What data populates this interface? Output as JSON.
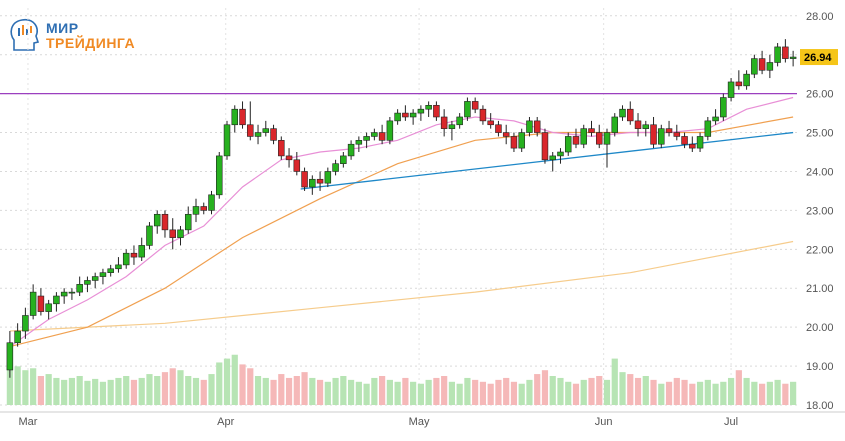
{
  "logo": {
    "line1": "МИР",
    "line2": "ТРЕЙДИНГА"
  },
  "chart_data": {
    "type": "candlestick",
    "y_ticks": [
      "28.00",
      "27.00",
      "26.00",
      "25.00",
      "24.00",
      "23.00",
      "22.00",
      "21.00",
      "20.00",
      "19.00",
      "18.00"
    ],
    "ylim": [
      18,
      28.2
    ],
    "x_ticks": [
      {
        "label": "Mar",
        "t": 1.0
      },
      {
        "label": "Apr",
        "t": 10.0
      },
      {
        "label": "May",
        "t": 18.8
      },
      {
        "label": "Jun",
        "t": 27.2
      },
      {
        "label": "Jul",
        "t": 33.0
      }
    ],
    "last_price": "26.94",
    "colors": {
      "up": "#27b11f",
      "down": "#d9262b",
      "vol_up": "#b7e4b4",
      "vol_down": "#f5b8b8",
      "resistance": "#9b3fbf",
      "support": "#1e88c8",
      "ma_short": "#e88fd6",
      "ma_mid": "#f0a050",
      "ma_long": "#f6cc8c",
      "last_tag": "#f5c518"
    },
    "candles": [
      [
        18.9,
        19.9,
        18.7,
        19.6
      ],
      [
        19.6,
        20.1,
        19.5,
        19.9
      ],
      [
        19.9,
        20.5,
        19.7,
        20.3
      ],
      [
        20.3,
        21.1,
        20.2,
        20.9
      ],
      [
        20.8,
        21.0,
        20.3,
        20.4
      ],
      [
        20.4,
        20.7,
        20.2,
        20.6
      ],
      [
        20.6,
        20.9,
        20.4,
        20.8
      ],
      [
        20.8,
        21.0,
        20.6,
        20.9
      ],
      [
        20.9,
        21.0,
        20.7,
        20.9
      ],
      [
        20.9,
        21.3,
        20.8,
        21.1
      ],
      [
        21.1,
        21.3,
        20.9,
        21.2
      ],
      [
        21.2,
        21.4,
        21.0,
        21.3
      ],
      [
        21.3,
        21.5,
        21.1,
        21.4
      ],
      [
        21.4,
        21.6,
        21.3,
        21.5
      ],
      [
        21.5,
        21.8,
        21.4,
        21.6
      ],
      [
        21.6,
        22.0,
        21.5,
        21.9
      ],
      [
        21.9,
        22.1,
        21.6,
        21.8
      ],
      [
        21.8,
        22.3,
        21.7,
        22.1
      ],
      [
        22.1,
        22.7,
        22.0,
        22.6
      ],
      [
        22.6,
        23.0,
        22.4,
        22.9
      ],
      [
        22.9,
        23.0,
        22.3,
        22.5
      ],
      [
        22.5,
        22.8,
        22.0,
        22.3
      ],
      [
        22.3,
        22.6,
        22.1,
        22.5
      ],
      [
        22.5,
        23.1,
        22.4,
        22.9
      ],
      [
        22.9,
        23.3,
        22.7,
        23.1
      ],
      [
        23.1,
        23.2,
        22.9,
        23.0
      ],
      [
        23.0,
        23.5,
        22.9,
        23.4
      ],
      [
        23.4,
        24.5,
        23.3,
        24.4
      ],
      [
        24.4,
        25.3,
        24.3,
        25.2
      ],
      [
        25.2,
        25.7,
        25.0,
        25.6
      ],
      [
        25.6,
        25.8,
        25.1,
        25.2
      ],
      [
        25.2,
        25.8,
        24.8,
        24.9
      ],
      [
        24.9,
        25.2,
        24.7,
        25.0
      ],
      [
        25.0,
        25.3,
        24.9,
        25.1
      ],
      [
        25.1,
        25.2,
        24.7,
        24.8
      ],
      [
        24.8,
        24.9,
        24.3,
        24.4
      ],
      [
        24.4,
        24.6,
        24.1,
        24.3
      ],
      [
        24.3,
        24.5,
        23.9,
        24.0
      ],
      [
        24.0,
        24.1,
        23.5,
        23.6
      ],
      [
        23.6,
        23.9,
        23.4,
        23.8
      ],
      [
        23.8,
        24.0,
        23.5,
        23.7
      ],
      [
        23.7,
        24.1,
        23.6,
        24.0
      ],
      [
        24.0,
        24.3,
        23.9,
        24.2
      ],
      [
        24.2,
        24.5,
        24.1,
        24.4
      ],
      [
        24.4,
        24.8,
        24.3,
        24.7
      ],
      [
        24.7,
        24.9,
        24.5,
        24.8
      ],
      [
        24.8,
        25.0,
        24.6,
        24.9
      ],
      [
        24.9,
        25.1,
        24.8,
        25.0
      ],
      [
        25.0,
        25.2,
        24.7,
        24.8
      ],
      [
        24.8,
        25.4,
        24.7,
        25.3
      ],
      [
        25.3,
        25.6,
        25.2,
        25.5
      ],
      [
        25.5,
        25.7,
        25.3,
        25.4
      ],
      [
        25.4,
        25.6,
        25.2,
        25.5
      ],
      [
        25.5,
        25.7,
        25.3,
        25.6
      ],
      [
        25.6,
        25.8,
        25.4,
        25.7
      ],
      [
        25.7,
        25.8,
        25.3,
        25.4
      ],
      [
        25.4,
        25.6,
        24.9,
        25.1
      ],
      [
        25.1,
        25.3,
        24.8,
        25.2
      ],
      [
        25.2,
        25.5,
        25.1,
        25.4
      ],
      [
        25.4,
        25.9,
        25.3,
        25.8
      ],
      [
        25.8,
        25.9,
        25.5,
        25.6
      ],
      [
        25.6,
        25.7,
        25.2,
        25.3
      ],
      [
        25.3,
        25.5,
        25.1,
        25.2
      ],
      [
        25.2,
        25.3,
        24.9,
        25.0
      ],
      [
        25.0,
        25.2,
        24.7,
        24.9
      ],
      [
        24.9,
        25.0,
        24.5,
        24.6
      ],
      [
        24.6,
        25.1,
        24.5,
        25.0
      ],
      [
        25.0,
        25.4,
        24.9,
        25.3
      ],
      [
        25.3,
        25.4,
        24.9,
        25.0
      ],
      [
        25.0,
        25.1,
        24.2,
        24.3
      ],
      [
        24.3,
        24.5,
        24.0,
        24.4
      ],
      [
        24.4,
        24.6,
        24.2,
        24.5
      ],
      [
        24.5,
        25.0,
        24.4,
        24.9
      ],
      [
        24.9,
        25.1,
        24.6,
        24.7
      ],
      [
        24.7,
        25.2,
        24.6,
        25.1
      ],
      [
        25.1,
        25.3,
        24.9,
        25.0
      ],
      [
        25.0,
        25.2,
        24.6,
        24.7
      ],
      [
        24.7,
        25.1,
        24.1,
        25.0
      ],
      [
        25.0,
        25.5,
        24.9,
        25.4
      ],
      [
        25.4,
        25.7,
        25.3,
        25.6
      ],
      [
        25.6,
        25.8,
        25.2,
        25.3
      ],
      [
        25.3,
        25.5,
        24.9,
        25.1
      ],
      [
        25.1,
        25.3,
        24.9,
        25.2
      ],
      [
        25.2,
        25.4,
        24.6,
        24.7
      ],
      [
        24.7,
        25.2,
        24.6,
        25.1
      ],
      [
        25.1,
        25.3,
        24.9,
        25.0
      ],
      [
        25.0,
        25.2,
        24.8,
        24.9
      ],
      [
        24.9,
        25.0,
        24.6,
        24.7
      ],
      [
        24.7,
        24.9,
        24.5,
        24.6
      ],
      [
        24.6,
        25.0,
        24.5,
        24.9
      ],
      [
        24.9,
        25.4,
        24.8,
        25.3
      ],
      [
        25.3,
        25.6,
        25.2,
        25.4
      ],
      [
        25.4,
        26.0,
        25.3,
        25.9
      ],
      [
        25.9,
        26.4,
        25.8,
        26.3
      ],
      [
        26.3,
        26.6,
        26.1,
        26.2
      ],
      [
        26.2,
        26.6,
        26.1,
        26.5
      ],
      [
        26.5,
        27.0,
        26.4,
        26.9
      ],
      [
        26.9,
        27.1,
        26.5,
        26.6
      ],
      [
        26.6,
        27.0,
        26.4,
        26.8
      ],
      [
        26.8,
        27.3,
        26.7,
        27.2
      ],
      [
        27.2,
        27.4,
        26.8,
        26.9
      ],
      [
        26.9,
        27.1,
        26.7,
        26.94
      ]
    ],
    "volumes": [
      44,
      40,
      36,
      38,
      30,
      32,
      28,
      26,
      28,
      30,
      25,
      27,
      24,
      26,
      28,
      30,
      26,
      28,
      32,
      30,
      34,
      38,
      36,
      30,
      28,
      26,
      32,
      44,
      48,
      52,
      42,
      38,
      30,
      28,
      26,
      32,
      28,
      30,
      34,
      28,
      26,
      24,
      28,
      30,
      26,
      24,
      22,
      28,
      30,
      26,
      24,
      28,
      24,
      22,
      26,
      28,
      30,
      24,
      22,
      28,
      26,
      24,
      22,
      26,
      28,
      24,
      22,
      26,
      32,
      36,
      30,
      28,
      24,
      22,
      26,
      28,
      30,
      26,
      48,
      34,
      32,
      28,
      30,
      26,
      22,
      24,
      28,
      26,
      22,
      24,
      26,
      22,
      24,
      28,
      36,
      28,
      24,
      22,
      24,
      26,
      22,
      24
    ],
    "ma_short": [
      [
        0,
        19.5
      ],
      [
        5,
        20.2
      ],
      [
        10,
        20.7
      ],
      [
        15,
        21.3
      ],
      [
        20,
        22.1
      ],
      [
        25,
        22.6
      ],
      [
        30,
        23.6
      ],
      [
        35,
        24.3
      ],
      [
        40,
        24.5
      ],
      [
        45,
        24.6
      ],
      [
        50,
        24.8
      ],
      [
        55,
        25.2
      ],
      [
        60,
        25.4
      ],
      [
        65,
        25.3
      ],
      [
        70,
        25.0
      ],
      [
        75,
        24.9
      ],
      [
        80,
        25.0
      ],
      [
        85,
        25.0
      ],
      [
        90,
        25.1
      ],
      [
        95,
        25.6
      ],
      [
        101,
        25.9
      ]
    ],
    "ma_mid": [
      [
        0,
        19.5
      ],
      [
        10,
        20.0
      ],
      [
        20,
        21.0
      ],
      [
        30,
        22.3
      ],
      [
        40,
        23.3
      ],
      [
        50,
        24.2
      ],
      [
        60,
        24.8
      ],
      [
        70,
        25.0
      ],
      [
        80,
        25.0
      ],
      [
        90,
        25.0
      ],
      [
        101,
        25.4
      ]
    ],
    "ma_long": [
      [
        0,
        19.9
      ],
      [
        20,
        20.1
      ],
      [
        40,
        20.5
      ],
      [
        60,
        20.9
      ],
      [
        80,
        21.4
      ],
      [
        101,
        22.2
      ]
    ],
    "resistance": 26.0,
    "support": [
      [
        37.5,
        23.55
      ],
      [
        101,
        25.0
      ]
    ]
  }
}
